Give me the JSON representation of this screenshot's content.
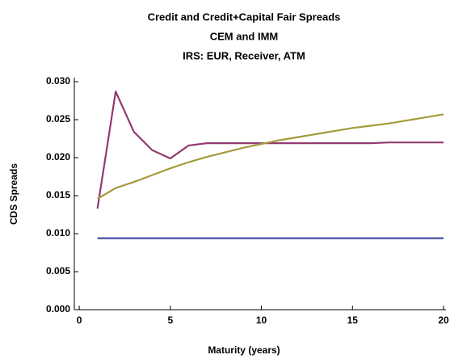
{
  "chart_data": {
    "type": "line",
    "title": [
      "Credit and Credit+Capital Fair Spreads",
      "CEM and IMM",
      "IRS: EUR, Receiver, ATM"
    ],
    "x_label": "Maturity (years)",
    "y_label": "CDS Spreads",
    "x": [
      1,
      2,
      3,
      4,
      5,
      6,
      7,
      8,
      9,
      10,
      11,
      12,
      13,
      14,
      15,
      16,
      17,
      18,
      19,
      20
    ],
    "series": [
      {
        "color": "#4b4ba3",
        "values": [
          0.0094,
          0.0094,
          0.0094,
          0.0094,
          0.0094,
          0.0094,
          0.0094,
          0.0094,
          0.0094,
          0.0094,
          0.0094,
          0.0094,
          0.0094,
          0.0094,
          0.0094,
          0.0094,
          0.0094,
          0.0094,
          0.0094,
          0.0094
        ]
      },
      {
        "color": "#933a70",
        "values": [
          0.0133,
          0.0287,
          0.0234,
          0.021,
          0.0199,
          0.0216,
          0.0219,
          0.0219,
          0.0219,
          0.0219,
          0.0219,
          0.0219,
          0.0219,
          0.0219,
          0.0219,
          0.0219,
          0.022,
          0.022,
          0.022,
          0.022
        ]
      },
      {
        "color": "#a59b3c",
        "values": [
          0.0146,
          0.016,
          0.0168,
          0.0177,
          0.0186,
          0.0194,
          0.0201,
          0.0207,
          0.0213,
          0.0218,
          0.0223,
          0.0227,
          0.0231,
          0.0235,
          0.0239,
          0.0242,
          0.0245,
          0.0249,
          0.0253,
          0.0257
        ]
      }
    ],
    "xlim": [
      -0.27,
      20
    ],
    "ylim": [
      0,
      0.0305
    ],
    "xticks": [
      0,
      5,
      10,
      15,
      20
    ],
    "yticks": [
      {
        "value": 0,
        "label": "0.000"
      },
      {
        "value": 0.005,
        "label": "0.005"
      },
      {
        "value": 0.01,
        "label": "0.010"
      },
      {
        "value": 0.015,
        "label": "0.015"
      },
      {
        "value": 0.02,
        "label": "0.020"
      },
      {
        "value": 0.025,
        "label": "0.025"
      },
      {
        "value": 0.03,
        "label": "0.030"
      }
    ]
  }
}
